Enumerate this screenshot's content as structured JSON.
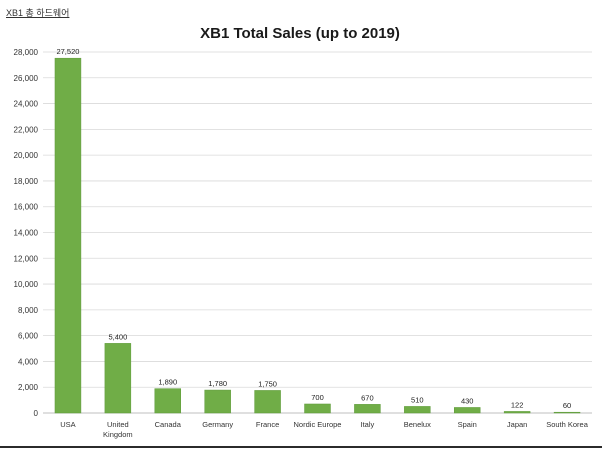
{
  "header": {
    "corner_label": "XB1 총 하드웨어"
  },
  "chart_data": {
    "type": "bar",
    "title": "XB1 Total Sales (up to 2019)",
    "xlabel": "",
    "ylabel": "",
    "ylim": [
      0,
      28000
    ],
    "yticks": [
      0,
      2000,
      4000,
      6000,
      8000,
      10000,
      12000,
      14000,
      16000,
      18000,
      20000,
      22000,
      24000,
      26000,
      28000
    ],
    "ytick_labels": [
      "0",
      "2,000",
      "4,000",
      "6,000",
      "8,000",
      "10,000",
      "12,000",
      "14,000",
      "16,000",
      "18,000",
      "20,000",
      "22,000",
      "24,000",
      "26,000",
      "28,000"
    ],
    "categories": [
      "USA",
      "United Kingdom",
      "Canada",
      "Germany",
      "France",
      "Nordic Europe",
      "Italy",
      "Benelux",
      "Spain",
      "Japan",
      "South Korea"
    ],
    "category_label_lines": [
      [
        "USA"
      ],
      [
        "United",
        "Kingdom"
      ],
      [
        "Canada"
      ],
      [
        "Germany"
      ],
      [
        "France"
      ],
      [
        "Nordic Europe"
      ],
      [
        "Italy"
      ],
      [
        "Benelux"
      ],
      [
        "Spain"
      ],
      [
        "Japan"
      ],
      [
        "South Korea"
      ]
    ],
    "values": [
      27520,
      5400,
      1890,
      1780,
      1750,
      700,
      670,
      510,
      430,
      122,
      60
    ],
    "data_labels": [
      "27,520",
      "5,400",
      "1,890",
      "1,780",
      "1,750",
      "700",
      "670",
      "510",
      "430",
      "122",
      "60"
    ],
    "bar_color": "#70ad47",
    "bar_edge_color": "#5e9a3a",
    "grid": true,
    "legend": "none"
  }
}
